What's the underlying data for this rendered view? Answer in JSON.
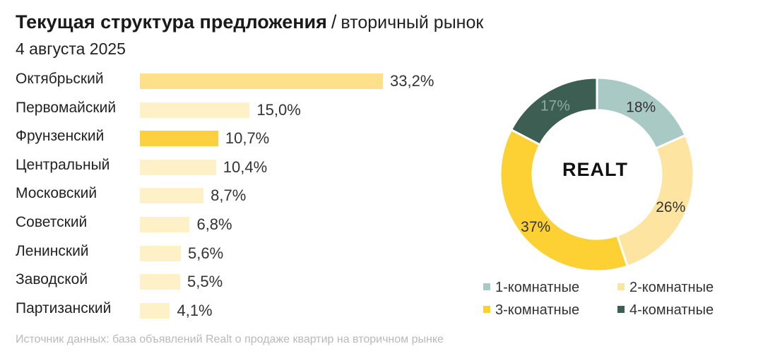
{
  "title": {
    "bold": "Текущая структура предложения",
    "slash": "/",
    "sub": "вторичный рынок",
    "date": "4 августа 2025"
  },
  "logo": "REALT",
  "source": "Источник данных: база объявлений Realt о продаже квартир на вторичном рынке",
  "chart_data": [
    {
      "type": "bar",
      "orientation": "horizontal",
      "categories": [
        "Октябрьский",
        "Первомайский",
        "Фрунзенский",
        "Центральный",
        "Московский",
        "Советский",
        "Ленинский",
        "Заводской",
        "Партизанский"
      ],
      "values": [
        33.2,
        15.0,
        10.7,
        10.4,
        8.7,
        6.8,
        5.6,
        5.5,
        4.1
      ],
      "value_labels": [
        "33,2%",
        "15,0%",
        "10,7%",
        "10,4%",
        "8,7%",
        "6,8%",
        "5,6%",
        "5,5%",
        "4,1%"
      ],
      "colors": [
        "#fde08a",
        "#fef0c7",
        "#fdd040",
        "#fef0c7",
        "#fef0c7",
        "#fef0c7",
        "#fef0c7",
        "#fef0c7",
        "#fef0c7"
      ],
      "unit": "%"
    },
    {
      "type": "pie",
      "donut": true,
      "categories": [
        "1-комнатные",
        "2-комнатные",
        "3-комнатные",
        "4-комнатные"
      ],
      "values": [
        18,
        26,
        37,
        17
      ],
      "value_labels": [
        "18%",
        "26%",
        "37%",
        "17%"
      ],
      "colors": [
        "#a9c9c5",
        "#fde4a0",
        "#fdd034",
        "#3d5e52"
      ],
      "legend": "bottom"
    }
  ]
}
